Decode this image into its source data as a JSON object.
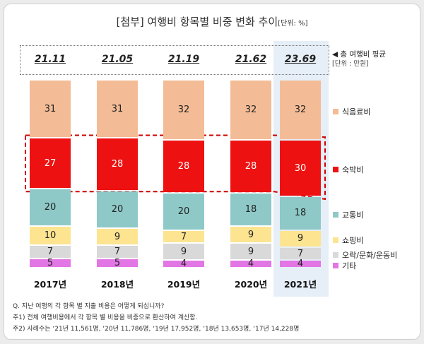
{
  "title": {
    "main": "[첨부] 여행비 항목별 비중 변화 추이",
    "unit": "[단위: %]"
  },
  "avg_legend": {
    "label": "총 여행비 평균",
    "unit": "[단위 : 만원]"
  },
  "notes": [
    "Q. 지난 여행의 각 항목 별 지출 비용은 어떻게 되십니까?",
    "주1) 전체 여행비용에서 각 항목 별 비용을 비중으로 환산하여 계산함.",
    "주2) 사례수는 ‘21년 11,561명, ‘20년 11,786명, ‘19년 17,952명, ‘18년 13,653명, ‘17년 14,228명"
  ],
  "chart_data": {
    "type": "bar",
    "stacked": true,
    "categories": [
      "2017년",
      "2018년",
      "2019년",
      "2020년",
      "2021년"
    ],
    "averages": [
      "21.11",
      "21.05",
      "21.19",
      "21.62",
      "23.69"
    ],
    "series": [
      {
        "name": "식음료비",
        "color": "#f4bc96",
        "values": [
          31,
          31,
          32,
          32,
          32
        ]
      },
      {
        "name": "숙박비",
        "color": "#ee1111",
        "values": [
          27,
          28,
          28,
          28,
          30
        ]
      },
      {
        "name": "교통비",
        "color": "#8ec9c8",
        "values": [
          20,
          20,
          20,
          18,
          18
        ]
      },
      {
        "name": "쇼핑비",
        "color": "#fde490",
        "values": [
          10,
          9,
          7,
          9,
          9
        ]
      },
      {
        "name": "오락/문화/운동비",
        "color": "#d9d9d9",
        "values": [
          7,
          7,
          9,
          9,
          7
        ]
      },
      {
        "name": "기타",
        "color": "#e276e4",
        "values": [
          5,
          5,
          4,
          4,
          4
        ]
      }
    ],
    "highlight_category": "2021년"
  }
}
